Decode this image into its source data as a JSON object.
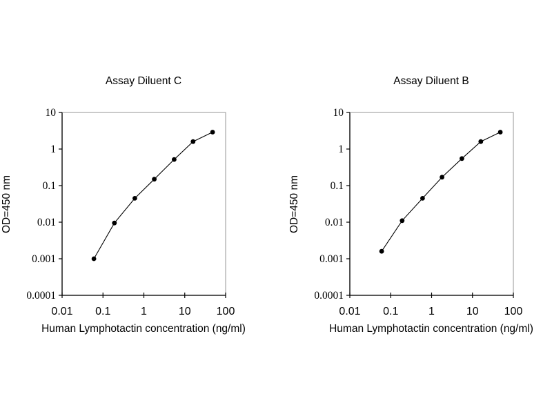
{
  "style": {
    "background": "#ffffff",
    "axis_color": "#000000",
    "frame_color": "#a6a6a6",
    "series_color": "#000000",
    "marker_color": "#000000",
    "text_color": "#000000"
  },
  "chart_data": [
    {
      "type": "line",
      "title": "Assay Diluent C",
      "xlabel": "Human Lymphotactin concentration (ng/ml)",
      "ylabel": "OD=450 nm",
      "xscale": "log",
      "yscale": "log",
      "xlim": [
        0.01,
        100
      ],
      "ylim": [
        0.0001,
        10
      ],
      "grid": false,
      "legend": "none",
      "marker": "filled-circle",
      "x": [
        0.06,
        0.19,
        0.6,
        1.8,
        5.5,
        16,
        48
      ],
      "y": [
        0.001,
        0.0095,
        0.045,
        0.15,
        0.52,
        1.6,
        2.9
      ],
      "x_ticks": [
        0.01,
        0.1,
        1,
        10,
        100
      ],
      "x_tick_labels": [
        "0.01",
        "0.1",
        "1",
        "10",
        "100"
      ],
      "y_ticks": [
        10,
        1,
        0.1,
        0.01,
        0.001,
        0.0001
      ],
      "y_tick_labels": [
        "10",
        "1",
        "0.1",
        "0.01",
        "0.001",
        "0.0001"
      ]
    },
    {
      "type": "line",
      "title": "Assay Diluent B",
      "xlabel": "Human Lymphotactin concentration (ng/ml)",
      "ylabel": "OD=450 nm",
      "xscale": "log",
      "yscale": "log",
      "xlim": [
        0.01,
        100
      ],
      "ylim": [
        0.0001,
        10
      ],
      "grid": false,
      "legend": "none",
      "marker": "filled-circle",
      "x": [
        0.06,
        0.19,
        0.6,
        1.8,
        5.5,
        16,
        48
      ],
      "y": [
        0.0016,
        0.011,
        0.045,
        0.17,
        0.55,
        1.6,
        2.9
      ],
      "x_ticks": [
        0.01,
        0.1,
        1,
        10,
        100
      ],
      "x_tick_labels": [
        "0.01",
        "0.1",
        "1",
        "10",
        "100"
      ],
      "y_ticks": [
        10,
        1,
        0.1,
        0.01,
        0.001,
        0.0001
      ],
      "y_tick_labels": [
        "10",
        "1",
        "0.1",
        "0.01",
        "0.001",
        "0.0001"
      ]
    }
  ]
}
